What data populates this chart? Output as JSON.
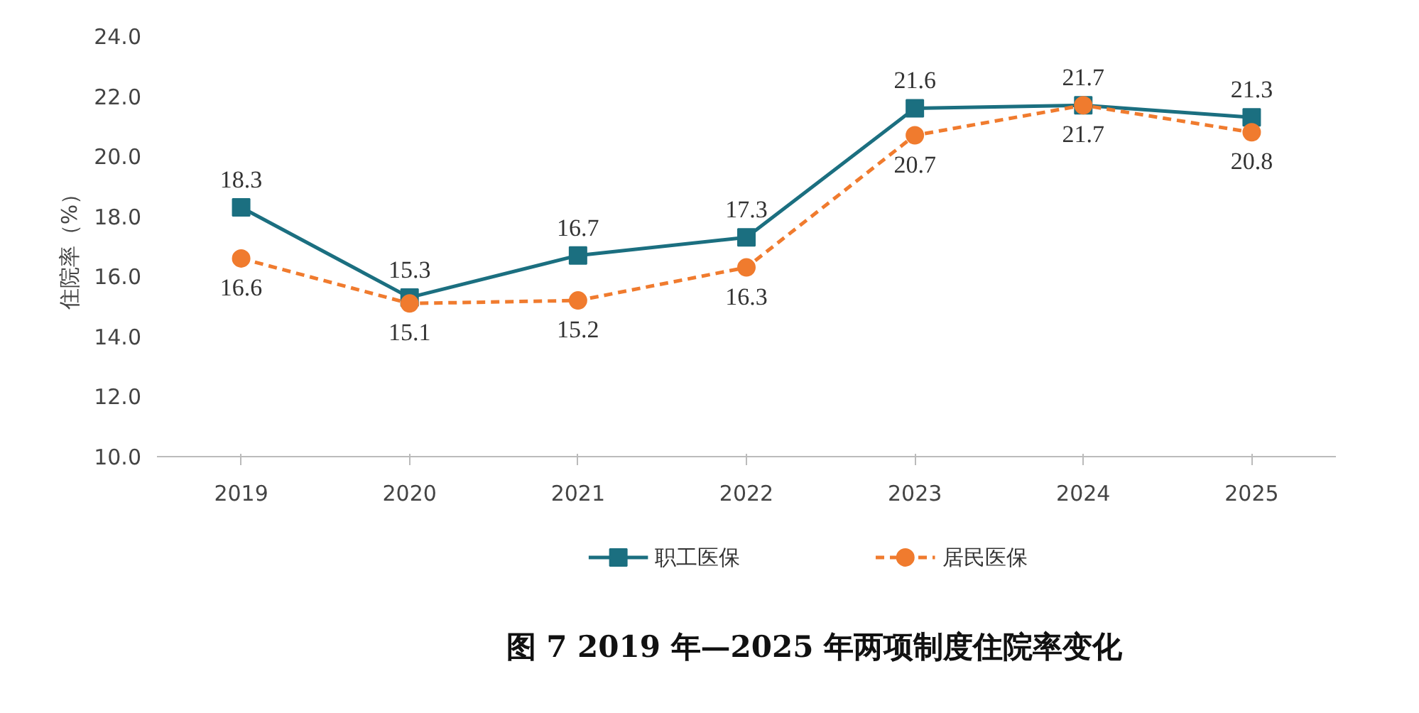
{
  "chart_data": {
    "type": "line",
    "title": "图 7   2019 年—2025 年两项制度住院率变化",
    "ylabel": "住院率（%）",
    "categories": [
      "2019",
      "2020",
      "2021",
      "2022",
      "2023",
      "2024",
      "2025"
    ],
    "series": [
      {
        "name": "职工医保",
        "color": "#1b6f80",
        "values": [
          18.3,
          15.3,
          16.7,
          17.3,
          21.6,
          21.7,
          21.3
        ],
        "marker": "square",
        "line_style": "solid"
      },
      {
        "name": "居民医保",
        "color": "#f07b2e",
        "values": [
          16.6,
          15.1,
          15.2,
          16.3,
          20.7,
          21.7,
          20.8
        ],
        "marker": "circle",
        "line_style": "dashed"
      }
    ],
    "ylim": [
      10,
      24
    ],
    "yticks": [
      {
        "value": 10,
        "label": "10.0"
      },
      {
        "value": 12,
        "label": "12.0"
      },
      {
        "value": 14,
        "label": "14.0"
      },
      {
        "value": 16,
        "label": "16.0"
      },
      {
        "value": 18,
        "label": "18.0"
      },
      {
        "value": 20,
        "label": "20.0"
      },
      {
        "value": 22,
        "label": "22.0"
      },
      {
        "value": 24,
        "label": "24.0"
      }
    ],
    "data_labels": true,
    "grid": false,
    "legend": "bottom"
  }
}
